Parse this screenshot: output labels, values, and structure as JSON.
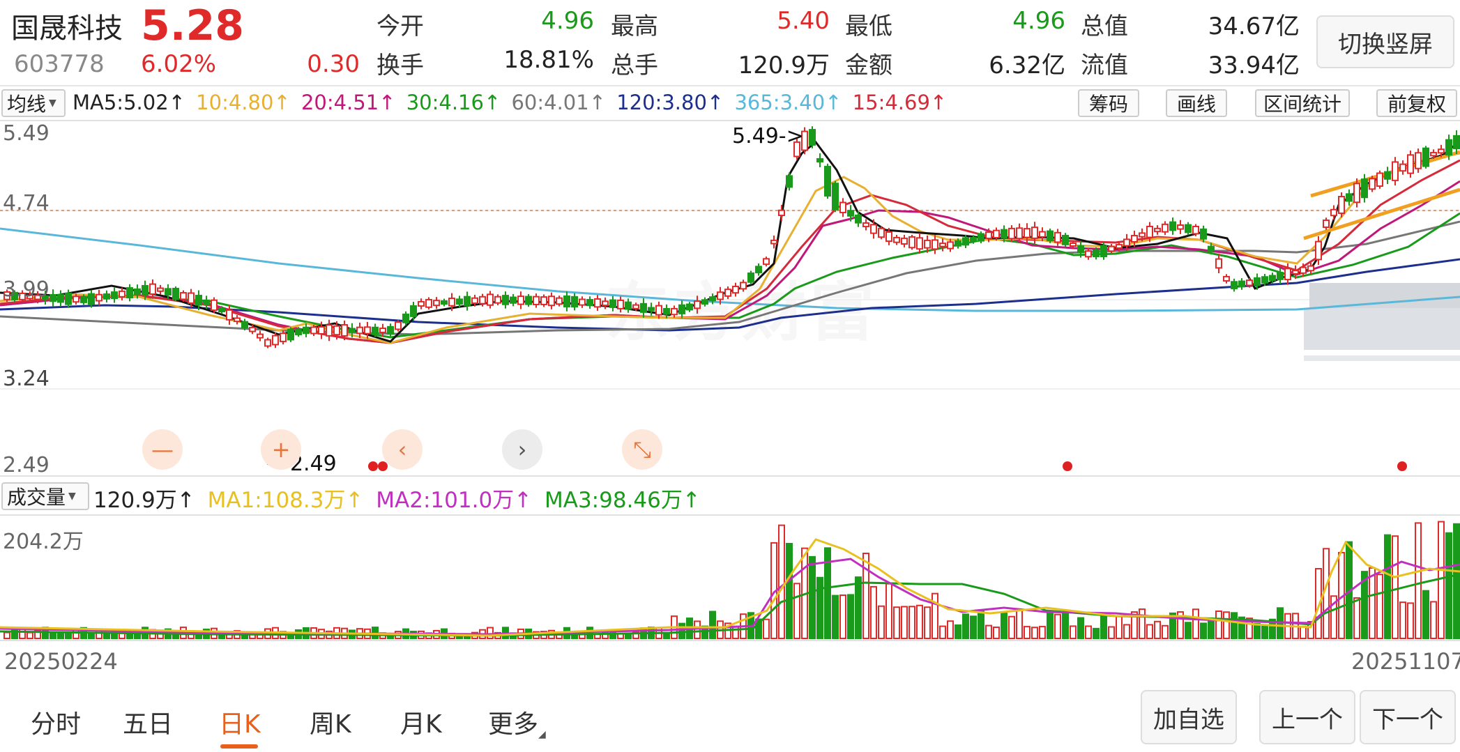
{
  "quote": {
    "name": "国晟科技",
    "code": "603778",
    "price": "5.28",
    "change_pct": "6.02%",
    "change": "0.30",
    "fields": [
      {
        "label": "今开",
        "value": "4.96",
        "color": "#1a9a1a"
      },
      {
        "label": "最高",
        "value": "5.40",
        "color": "#e02a2a"
      },
      {
        "label": "最低",
        "value": "4.96",
        "color": "#1a9a1a"
      },
      {
        "label": "总值",
        "value": "34.67亿",
        "color": "#222222"
      },
      {
        "label": "换手",
        "value": "18.81%",
        "color": "#222222"
      },
      {
        "label": "总手",
        "value": "120.9万",
        "color": "#222222"
      },
      {
        "label": "金额",
        "value": "6.32亿",
        "color": "#222222"
      },
      {
        "label": "流值",
        "value": "33.94亿",
        "color": "#222222"
      }
    ],
    "switch_label": "切换竖屏"
  },
  "indicator": {
    "selector": "均线",
    "ma_items": [
      {
        "text": "MA5:5.02↑",
        "color": "#222222"
      },
      {
        "text": "10:4.80↑",
        "color": "#e8b030"
      },
      {
        "text": "20:4.51↑",
        "color": "#c0187a"
      },
      {
        "text": "30:4.16↑",
        "color": "#1a9a1a"
      },
      {
        "text": "60:4.01↑",
        "color": "#777777"
      },
      {
        "text": "120:3.80↑",
        "color": "#1c2f8c"
      },
      {
        "text": "365:3.40↑",
        "color": "#59b7d9"
      },
      {
        "text": "15:4.69↑",
        "color": "#d42a3a"
      }
    ],
    "tools": [
      "筹码",
      "画线",
      "区间统计",
      "前复权"
    ]
  },
  "chart": {
    "y_labels": [
      "5.49",
      "4.74",
      "3.99",
      "3.24",
      "2.49"
    ],
    "high_note": "5.49->",
    "low_note": "<-2.49",
    "watermark": "东方财富",
    "nav": {
      "zoom_out": "—",
      "zoom_in": "+",
      "prev": "‹",
      "next": "›",
      "collapse": "⤡"
    }
  },
  "volume": {
    "selector": "成交量",
    "items": [
      {
        "text": "120.9万↑",
        "color": "#222222"
      },
      {
        "text": "MA1:108.3万↑",
        "color": "#e8c020"
      },
      {
        "text": "MA2:101.0万↑",
        "color": "#c030c0"
      },
      {
        "text": "MA3:98.46万↑",
        "color": "#1a9a1a"
      }
    ],
    "max_label": "204.2万",
    "start_date": "20250224",
    "end_date": "20251107"
  },
  "bottom": {
    "tabs": [
      "分时",
      "五日",
      "日K",
      "周K",
      "月K",
      "更多"
    ],
    "active_tab": "日K",
    "actions": [
      "加自选",
      "上一个",
      "下一个"
    ]
  },
  "colors": {
    "up": "#e02a2a",
    "down": "#1a9a1a",
    "accent": "#e8601c"
  }
}
